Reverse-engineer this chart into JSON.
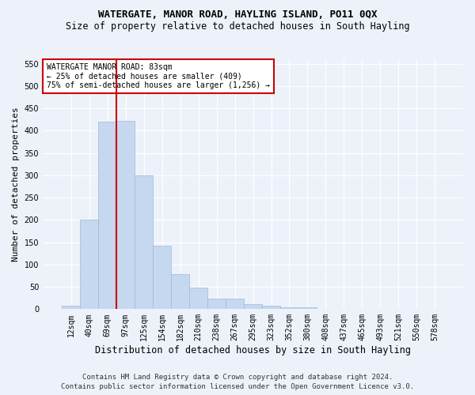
{
  "title1": "WATERGATE, MANOR ROAD, HAYLING ISLAND, PO11 0QX",
  "title2": "Size of property relative to detached houses in South Hayling",
  "xlabel": "Distribution of detached houses by size in South Hayling",
  "ylabel": "Number of detached properties",
  "categories": [
    "12sqm",
    "40sqm",
    "69sqm",
    "97sqm",
    "125sqm",
    "154sqm",
    "182sqm",
    "210sqm",
    "238sqm",
    "267sqm",
    "295sqm",
    "323sqm",
    "352sqm",
    "380sqm",
    "408sqm",
    "437sqm",
    "465sqm",
    "493sqm",
    "521sqm",
    "550sqm",
    "578sqm"
  ],
  "values": [
    8,
    200,
    420,
    422,
    300,
    143,
    79,
    48,
    23,
    23,
    11,
    8,
    5,
    5,
    0,
    0,
    0,
    0,
    0,
    0,
    1
  ],
  "bar_color": "#c5d8f0",
  "bar_edge_color": "#a0b8d8",
  "vline_x": 2.5,
  "vline_color": "#cc0000",
  "ylim": [
    0,
    560
  ],
  "yticks": [
    0,
    50,
    100,
    150,
    200,
    250,
    300,
    350,
    400,
    450,
    500,
    550
  ],
  "annotation_text": "WATERGATE MANOR ROAD: 83sqm\n← 25% of detached houses are smaller (409)\n75% of semi-detached houses are larger (1,256) →",
  "annotation_box_color": "#ffffff",
  "annotation_box_edge": "#cc0000",
  "footer_line1": "Contains HM Land Registry data © Crown copyright and database right 2024.",
  "footer_line2": "Contains public sector information licensed under the Open Government Licence v3.0.",
  "background_color": "#edf2fa",
  "grid_color": "#ffffff",
  "title1_fontsize": 9,
  "title2_fontsize": 8.5,
  "xlabel_fontsize": 8.5,
  "ylabel_fontsize": 8,
  "tick_fontsize": 7,
  "annotation_fontsize": 7,
  "footer_fontsize": 6.5
}
